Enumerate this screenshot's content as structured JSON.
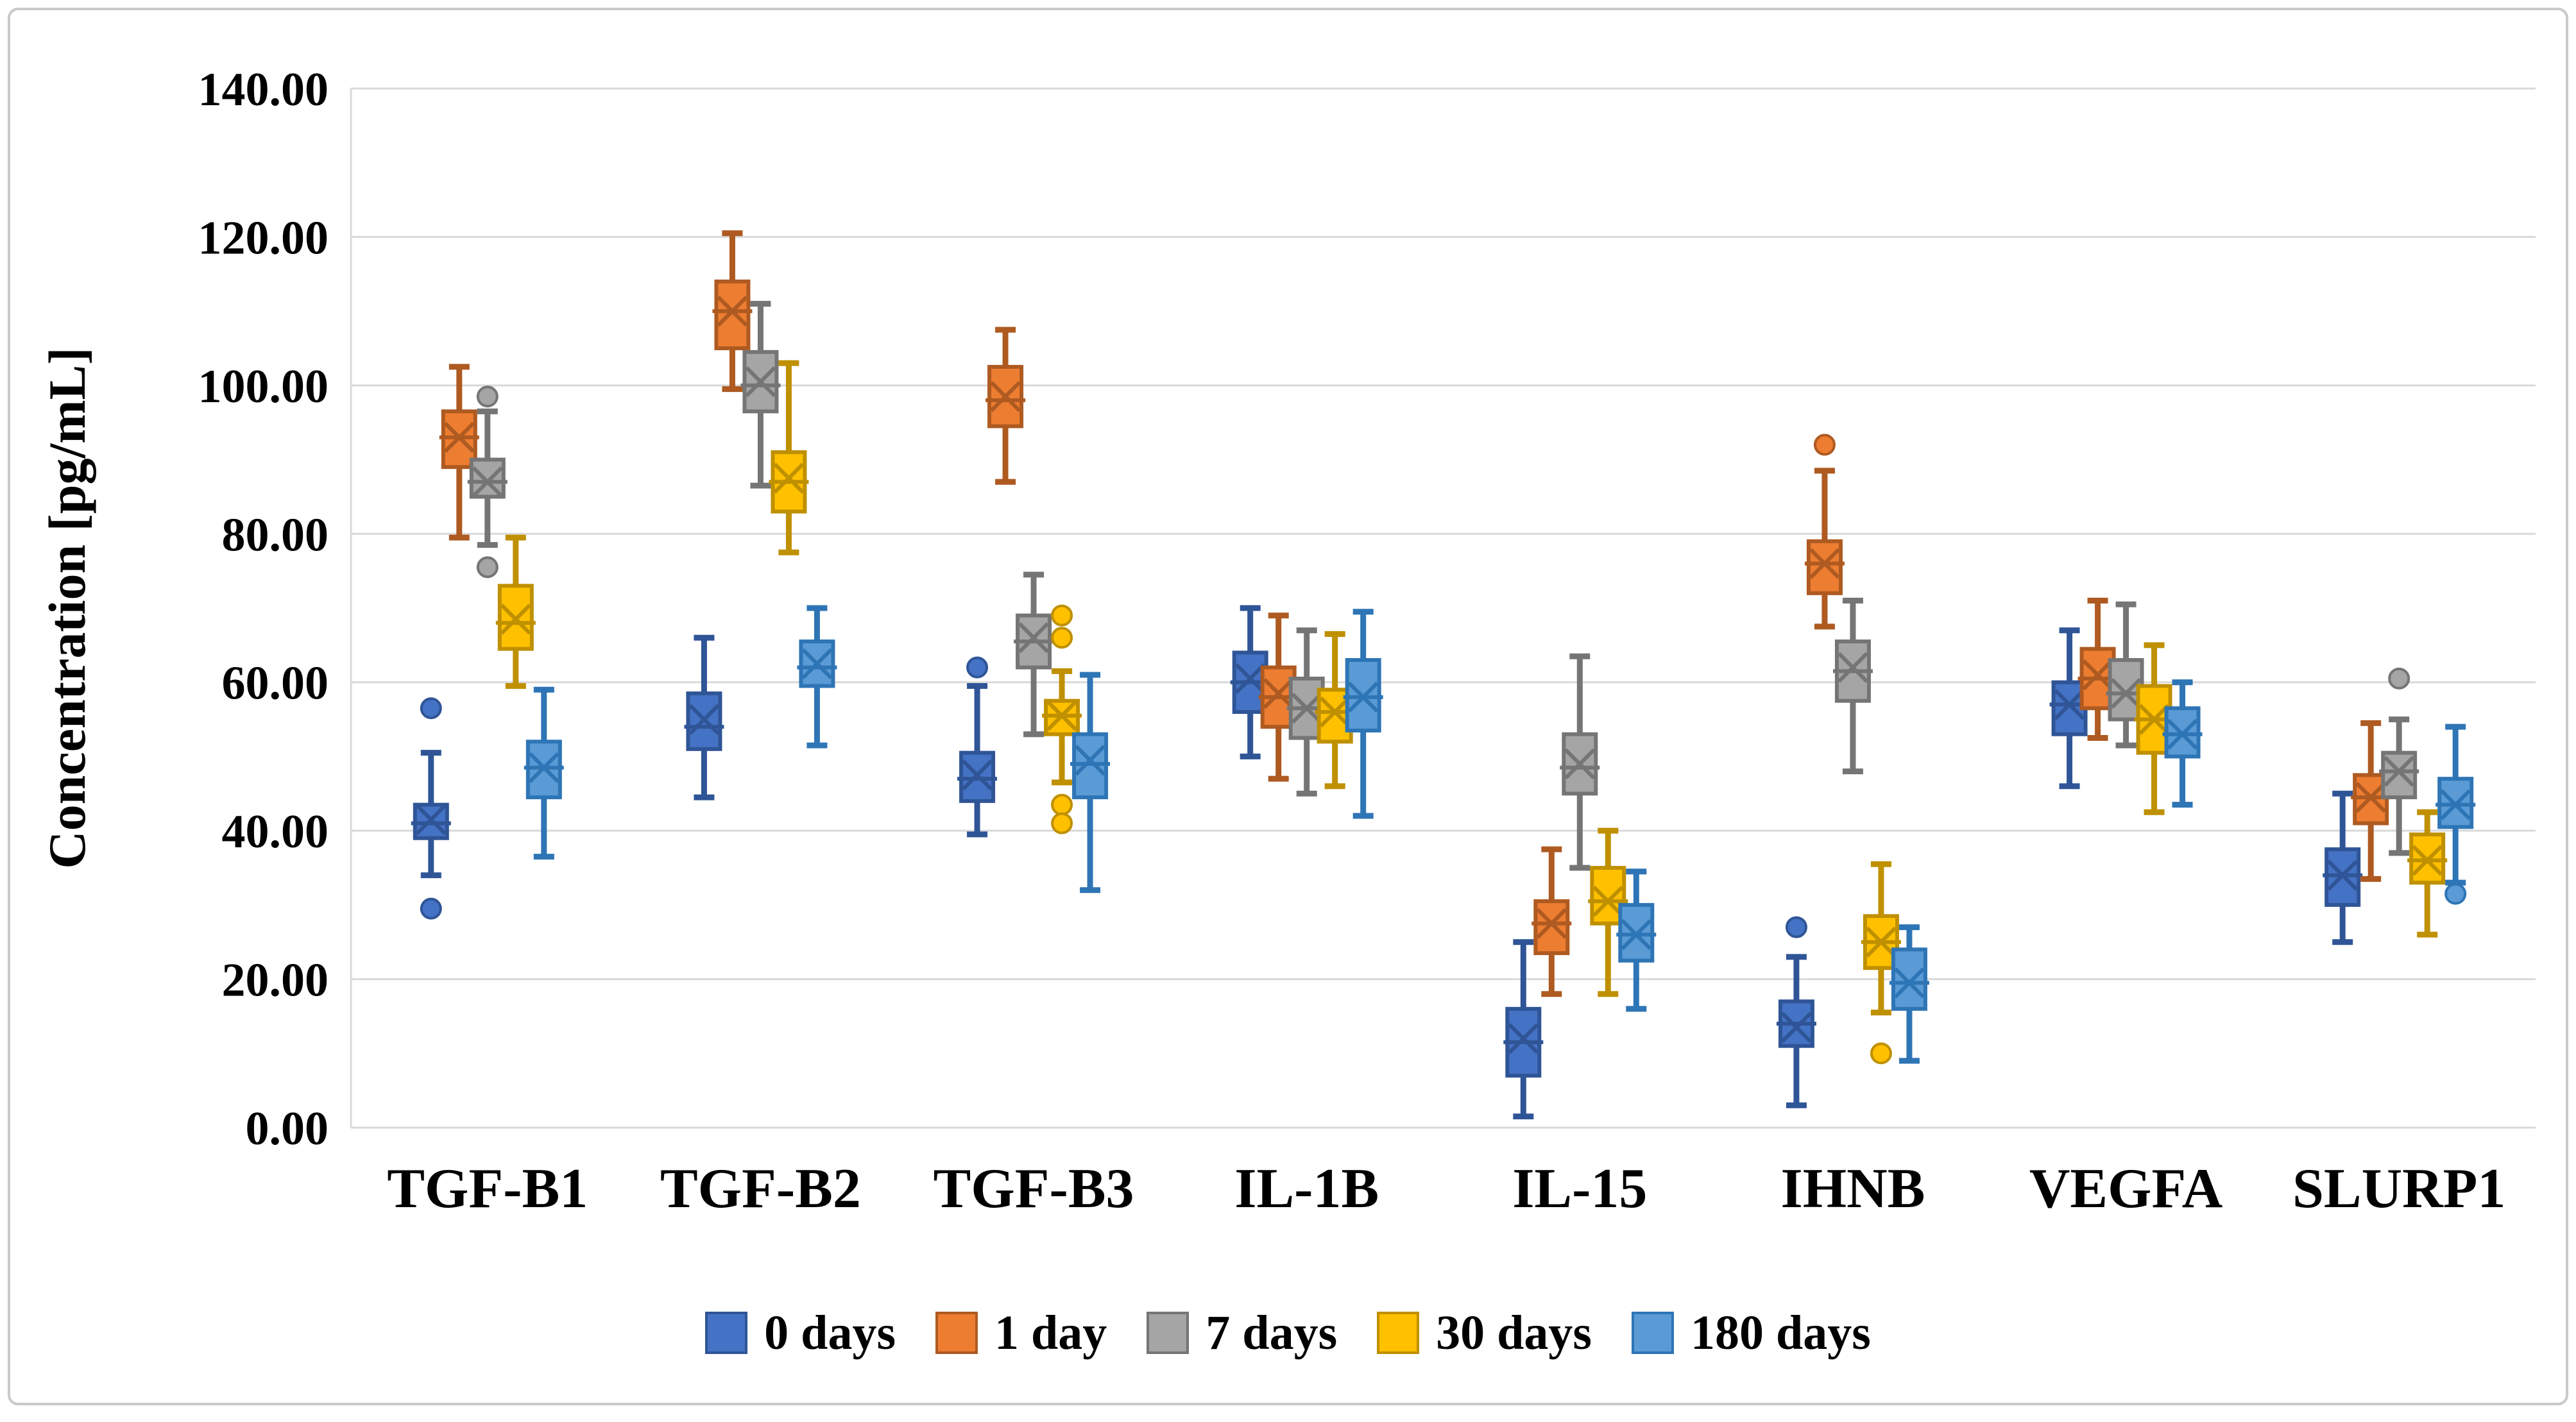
{
  "figure": {
    "background": "#FFFFFF",
    "border_color": "#C9C9C9",
    "grid_color": "#D9D9D9",
    "text_color": "#000000"
  },
  "chart_data": {
    "type": "boxplot",
    "title": "",
    "xlabel": "",
    "ylabel": "Concentration [pg/mL]",
    "ylim": [
      0,
      140
    ],
    "ytick_step": 20,
    "ytick_labels": [
      "0.00",
      "20.00",
      "40.00",
      "60.00",
      "80.00",
      "100.00",
      "120.00",
      "140.00"
    ],
    "grid": "horizontal",
    "legend_position": "bottom",
    "categories": [
      "TGF-B1",
      "TGF-B2",
      "TGF-B3",
      "IL-1B",
      "IL-15",
      "IHNB",
      "VEGFA",
      "SLURP1"
    ],
    "series": [
      {
        "name": "0 days",
        "fill": "#4472C4",
        "stroke": "#2F5597",
        "boxes": [
          {
            "min": 34,
            "q1": 39,
            "med": 41,
            "q3": 43.5,
            "max": 50.5,
            "mean": 41.5,
            "outliers": [
              56.5,
              29.5
            ]
          },
          {
            "min": 44.5,
            "q1": 51,
            "med": 54,
            "q3": 58.5,
            "max": 66,
            "mean": 55,
            "outliers": []
          },
          {
            "min": 39.5,
            "q1": 44,
            "med": 47,
            "q3": 50.5,
            "max": 59.5,
            "mean": 47.5,
            "outliers": [
              62
            ]
          },
          {
            "min": 50,
            "q1": 56,
            "med": 60,
            "q3": 64,
            "max": 70,
            "mean": 60.5,
            "outliers": []
          },
          {
            "min": 1.5,
            "q1": 7,
            "med": 11.5,
            "q3": 16,
            "max": 25,
            "mean": 12,
            "outliers": []
          },
          {
            "min": 3,
            "q1": 11,
            "med": 14,
            "q3": 17,
            "max": 23,
            "mean": 13.5,
            "outliers": [
              27
            ]
          },
          {
            "min": 46,
            "q1": 53,
            "med": 57,
            "q3": 60,
            "max": 67,
            "mean": 57,
            "outliers": []
          },
          {
            "min": 25,
            "q1": 30,
            "med": 34,
            "q3": 37.5,
            "max": 45,
            "mean": 34,
            "outliers": []
          }
        ]
      },
      {
        "name": "1 day",
        "fill": "#ED7D31",
        "stroke": "#AE5A21",
        "boxes": [
          {
            "min": 79.5,
            "q1": 89,
            "med": 93,
            "q3": 96.5,
            "max": 102.5,
            "mean": 93,
            "outliers": []
          },
          {
            "min": 99.5,
            "q1": 105,
            "med": 110,
            "q3": 114,
            "max": 120.5,
            "mean": 110,
            "outliers": []
          },
          {
            "min": 87,
            "q1": 94.5,
            "med": 98,
            "q3": 102.5,
            "max": 107.5,
            "mean": 98.5,
            "outliers": []
          },
          {
            "min": 47,
            "q1": 54,
            "med": 58,
            "q3": 62,
            "max": 69,
            "mean": 58.5,
            "outliers": []
          },
          {
            "min": 18,
            "q1": 23.5,
            "med": 27.5,
            "q3": 30.5,
            "max": 37.5,
            "mean": 27.5,
            "outliers": []
          },
          {
            "min": 67.5,
            "q1": 72,
            "med": 76,
            "q3": 79,
            "max": 88.5,
            "mean": 76,
            "outliers": [
              92
            ]
          },
          {
            "min": 52.5,
            "q1": 56.5,
            "med": 60.5,
            "q3": 64.5,
            "max": 71,
            "mean": 61,
            "outliers": []
          },
          {
            "min": 33.5,
            "q1": 41,
            "med": 44.5,
            "q3": 47.5,
            "max": 54.5,
            "mean": 44.5,
            "outliers": []
          }
        ]
      },
      {
        "name": "7 days",
        "fill": "#A5A5A5",
        "stroke": "#757575",
        "boxes": [
          {
            "min": 78.5,
            "q1": 85,
            "med": 87,
            "q3": 90,
            "max": 96.5,
            "mean": 87,
            "outliers": [
              98.5,
              75.5
            ]
          },
          {
            "min": 86.5,
            "q1": 96.5,
            "med": 100,
            "q3": 104.5,
            "max": 111,
            "mean": 100.5,
            "outliers": []
          },
          {
            "min": 53,
            "q1": 62,
            "med": 65.5,
            "q3": 69,
            "max": 74.5,
            "mean": 66,
            "outliers": []
          },
          {
            "min": 45,
            "q1": 52.5,
            "med": 56.5,
            "q3": 60.5,
            "max": 67,
            "mean": 56.5,
            "outliers": []
          },
          {
            "min": 35,
            "q1": 45,
            "med": 48.5,
            "q3": 53,
            "max": 63.5,
            "mean": 49,
            "outliers": []
          },
          {
            "min": 48,
            "q1": 57.5,
            "med": 61.5,
            "q3": 65.5,
            "max": 71,
            "mean": 62,
            "outliers": []
          },
          {
            "min": 51.5,
            "q1": 55,
            "med": 58.5,
            "q3": 63,
            "max": 70.5,
            "mean": 58.5,
            "outliers": []
          },
          {
            "min": 37,
            "q1": 44.5,
            "med": 48,
            "q3": 50.5,
            "max": 55,
            "mean": 48,
            "outliers": [
              60.5
            ]
          }
        ]
      },
      {
        "name": "30 days",
        "fill": "#FFC000",
        "stroke": "#BF9000",
        "boxes": [
          {
            "min": 59.5,
            "q1": 64.5,
            "med": 68,
            "q3": 73,
            "max": 79.5,
            "mean": 68.5,
            "outliers": []
          },
          {
            "min": 77.5,
            "q1": 83,
            "med": 87,
            "q3": 91,
            "max": 103,
            "mean": 87.5,
            "outliers": []
          },
          {
            "min": 46.5,
            "q1": 53,
            "med": 55.5,
            "q3": 57.5,
            "max": 61.5,
            "mean": 55.5,
            "outliers": [
              69,
              66,
              43.5,
              41
            ]
          },
          {
            "min": 46,
            "q1": 52,
            "med": 56,
            "q3": 59,
            "max": 66.5,
            "mean": 56,
            "outliers": []
          },
          {
            "min": 18,
            "q1": 27.5,
            "med": 30.5,
            "q3": 35,
            "max": 40,
            "mean": 30.5,
            "outliers": []
          },
          {
            "min": 15.5,
            "q1": 21.5,
            "med": 25,
            "q3": 28.5,
            "max": 35.5,
            "mean": 25,
            "outliers": [
              10
            ]
          },
          {
            "min": 42.5,
            "q1": 50.5,
            "med": 55,
            "q3": 59.5,
            "max": 65,
            "mean": 55,
            "outliers": []
          },
          {
            "min": 26,
            "q1": 33,
            "med": 36,
            "q3": 39.5,
            "max": 42.5,
            "mean": 36,
            "outliers": []
          }
        ]
      },
      {
        "name": "180 days",
        "fill": "#5B9BD5",
        "stroke": "#2E75B6",
        "boxes": [
          {
            "min": 36.5,
            "q1": 44.5,
            "med": 48.5,
            "q3": 52,
            "max": 59,
            "mean": 48.5,
            "outliers": []
          },
          {
            "min": 51.5,
            "q1": 59.5,
            "med": 62,
            "q3": 65.5,
            "max": 70,
            "mean": 62.5,
            "outliers": []
          },
          {
            "min": 32,
            "q1": 44.5,
            "med": 49,
            "q3": 53,
            "max": 61,
            "mean": 49.5,
            "outliers": []
          },
          {
            "min": 42,
            "q1": 53.5,
            "med": 58,
            "q3": 63,
            "max": 69.5,
            "mean": 58,
            "outliers": []
          },
          {
            "min": 16,
            "q1": 22.5,
            "med": 26,
            "q3": 30,
            "max": 34.5,
            "mean": 26,
            "outliers": []
          },
          {
            "min": 9,
            "q1": 16,
            "med": 19.5,
            "q3": 24,
            "max": 27,
            "mean": 19.5,
            "outliers": []
          },
          {
            "min": 43.5,
            "q1": 50,
            "med": 53,
            "q3": 56.5,
            "max": 60,
            "mean": 53,
            "outliers": []
          },
          {
            "min": 33,
            "q1": 40.5,
            "med": 43.5,
            "q3": 47,
            "max": 54,
            "mean": 43.5,
            "outliers": [
              31.5
            ]
          }
        ]
      }
    ]
  }
}
